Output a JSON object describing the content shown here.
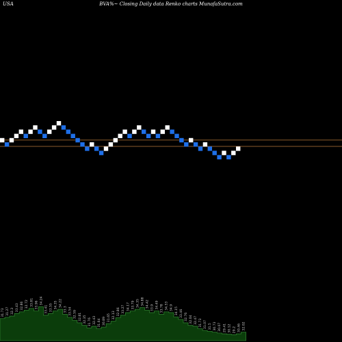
{
  "header": {
    "country": "USA",
    "caption": "BVA%~  Closing Daily data  Renko  charts MunafaSutra.com"
  },
  "colors": {
    "background": "#000000",
    "up_box": "#ffffff",
    "down_box": "#1e6fe8",
    "level_line": "#8b5a2b",
    "volume_fill": "#0b3d0b",
    "volume_stroke": "#2e7d2e",
    "volume_label": "#c8c8c8"
  },
  "chart_data": {
    "type": "renko",
    "y_unit": "box steps",
    "level_lines": [
      1.0,
      0.0
    ],
    "boxes": [
      {
        "level": 1,
        "dir": "up"
      },
      {
        "level": 0,
        "dir": "down"
      },
      {
        "level": 1,
        "dir": "up"
      },
      {
        "level": 2,
        "dir": "up"
      },
      {
        "level": 3,
        "dir": "up"
      },
      {
        "level": 2,
        "dir": "down"
      },
      {
        "level": 3,
        "dir": "up"
      },
      {
        "level": 4,
        "dir": "up"
      },
      {
        "level": 3,
        "dir": "down"
      },
      {
        "level": 2,
        "dir": "down"
      },
      {
        "level": 3,
        "dir": "up"
      },
      {
        "level": 4,
        "dir": "up"
      },
      {
        "level": 5,
        "dir": "up"
      },
      {
        "level": 4,
        "dir": "down"
      },
      {
        "level": 3,
        "dir": "down"
      },
      {
        "level": 2,
        "dir": "down"
      },
      {
        "level": 1,
        "dir": "down"
      },
      {
        "level": 0,
        "dir": "down"
      },
      {
        "level": -1,
        "dir": "down"
      },
      {
        "level": 0,
        "dir": "up"
      },
      {
        "level": -1,
        "dir": "down"
      },
      {
        "level": -2,
        "dir": "down"
      },
      {
        "level": -1,
        "dir": "up"
      },
      {
        "level": 0,
        "dir": "up"
      },
      {
        "level": 1,
        "dir": "up"
      },
      {
        "level": 2,
        "dir": "up"
      },
      {
        "level": 3,
        "dir": "up"
      },
      {
        "level": 2,
        "dir": "down"
      },
      {
        "level": 3,
        "dir": "up"
      },
      {
        "level": 4,
        "dir": "up"
      },
      {
        "level": 3,
        "dir": "down"
      },
      {
        "level": 2,
        "dir": "down"
      },
      {
        "level": 3,
        "dir": "up"
      },
      {
        "level": 2,
        "dir": "down"
      },
      {
        "level": 3,
        "dir": "up"
      },
      {
        "level": 4,
        "dir": "up"
      },
      {
        "level": 3,
        "dir": "down"
      },
      {
        "level": 2,
        "dir": "down"
      },
      {
        "level": 1,
        "dir": "down"
      },
      {
        "level": 0,
        "dir": "down"
      },
      {
        "level": 1,
        "dir": "up"
      },
      {
        "level": 0,
        "dir": "down"
      },
      {
        "level": -1,
        "dir": "down"
      },
      {
        "level": 0,
        "dir": "up"
      },
      {
        "level": -1,
        "dir": "down"
      },
      {
        "level": -2,
        "dir": "down"
      },
      {
        "level": -3,
        "dir": "down"
      },
      {
        "level": -2,
        "dir": "up"
      },
      {
        "level": -3,
        "dir": "down"
      },
      {
        "level": -2,
        "dir": "up"
      },
      {
        "level": -1,
        "dir": "up"
      }
    ],
    "volume_bars": [
      {
        "label": "31.73",
        "value": 0.52
      },
      {
        "label": "31.27",
        "value": 0.55
      },
      {
        "label": "32.3",
        "value": 0.58
      },
      {
        "label": "33.43",
        "value": 0.64
      },
      {
        "label": "32.86",
        "value": 0.68
      },
      {
        "label": "32.72",
        "value": 0.72
      },
      {
        "label": "33.81",
        "value": 0.76
      },
      {
        "label": "33.96",
        "value": 0.7
      },
      {
        "label": "34.24",
        "value": 0.8
      },
      {
        "label": "33.41",
        "value": 0.6
      },
      {
        "label": "33.55",
        "value": 0.64
      },
      {
        "label": "34.35",
        "value": 0.7
      },
      {
        "label": "34.22",
        "value": 0.74
      },
      {
        "label": "33.3",
        "value": 0.62
      },
      {
        "label": "33.54",
        "value": 0.55
      },
      {
        "label": "32.59",
        "value": 0.48
      },
      {
        "label": "32.81",
        "value": 0.42
      },
      {
        "label": "32.35",
        "value": 0.36
      },
      {
        "label": "31.76",
        "value": 0.3
      },
      {
        "label": "32.43",
        "value": 0.34
      },
      {
        "label": "31.64",
        "value": 0.28
      },
      {
        "label": "30.89",
        "value": 0.32
      },
      {
        "label": "31.65",
        "value": 0.4
      },
      {
        "label": "32.13",
        "value": 0.46
      },
      {
        "label": "32.86",
        "value": 0.54
      },
      {
        "label": "33.27",
        "value": 0.6
      },
      {
        "label": "34.17",
        "value": 0.66
      },
      {
        "label": "33.79",
        "value": 0.7
      },
      {
        "label": "34.35",
        "value": 0.74
      },
      {
        "label": "34.88",
        "value": 0.78
      },
      {
        "label": "34.42",
        "value": 0.72
      },
      {
        "label": "33.9",
        "value": 0.66
      },
      {
        "label": "34.49",
        "value": 0.7
      },
      {
        "label": "33.78",
        "value": 0.62
      },
      {
        "label": "34.53",
        "value": 0.68
      },
      {
        "label": "34.9",
        "value": 0.66
      },
      {
        "label": "34.15",
        "value": 0.56
      },
      {
        "label": "33.46",
        "value": 0.5
      },
      {
        "label": "32.76",
        "value": 0.42
      },
      {
        "label": "32.04",
        "value": 0.36
      },
      {
        "label": "32.47",
        "value": 0.34
      },
      {
        "label": "31.73",
        "value": 0.28
      },
      {
        "label": "31.07",
        "value": 0.24
      },
      {
        "label": "31.5",
        "value": 0.22
      },
      {
        "label": "30.73",
        "value": 0.2
      },
      {
        "label": "30.07",
        "value": 0.18
      },
      {
        "label": "29.41",
        "value": 0.16
      },
      {
        "label": "30.12",
        "value": 0.15
      },
      {
        "label": "29.2",
        "value": 0.14
      },
      {
        "label": "30.46",
        "value": 0.16
      },
      {
        "label": "32.02",
        "value": 0.2
      }
    ]
  }
}
